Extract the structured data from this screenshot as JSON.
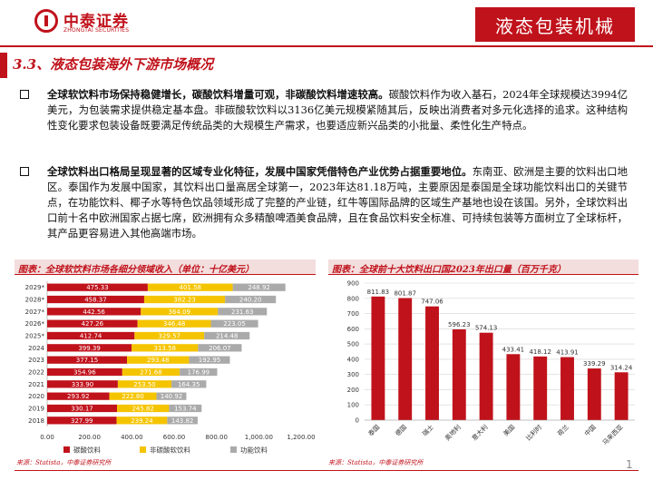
{
  "header": {
    "logo_cn": "中泰证券",
    "logo_en": "ZHONGTAI SECURITIES",
    "tag": "液态包装机械"
  },
  "section": {
    "title": "3.3、液态包装海外下游市场概况"
  },
  "paragraphs": [
    {
      "bold": "全球软饮料市场保持稳健增长，碳酸饮料增量可观，非碳酸饮料增速较高。",
      "text": "碳酸饮料作为收入基石，2024年全球规模达3994亿美元，为包装需求提供稳定基本盘。非碳酸软饮料以3136亿美元规模紧随其后，反映出消费者对多元化选择的追求。这种结构性变化要求包装设备既要满足传统品类的大规模生产需求，也要适应新兴品类的小批量、柔性化生产特点。"
    },
    {
      "bold": "全球饮料出口格局呈现显著的区域专业化特征，发展中国家凭借特色产业优势占据重要地位。",
      "text": "东南亚、欧洲是主要的饮料出口地区。泰国作为发展中国家，其饮料出口量高居全球第一，2023年达81.18万吨，主要原因是泰国是全球功能饮料出口的关键节点，在功能饮料、椰子水等特色饮品领域形成了完整的产业链，红牛等国际品牌的区域生产基地也设在该国。另外，全球饮料出口前十名中欧洲国家占据七席，欧洲拥有众多精酿啤酒美食品牌，且在食品饮料安全标准、可持续包装等方面树立了全球标杆，其产品更容易进入其他高端市场。"
    }
  ],
  "colors": {
    "accent": "#c0121b",
    "series": [
      "#c0121b",
      "#f5c400",
      "#aaaaaa"
    ]
  },
  "left_panel": {
    "title": "图表：全球软饮料市场各细分领域收入（单位：十亿美元）",
    "source": "来源：Statista，中泰证券研究所"
  },
  "right_panel": {
    "title": "图表：全球前十大饮料出口国2023年出口量（百万千克）",
    "source": "来源：Statista，中泰证券研究所"
  },
  "page_number": "1",
  "chart_data": [
    {
      "type": "bar",
      "orientation": "horizontal",
      "stacked": true,
      "title": "全球软饮料市场各细分领域收入（单位：十亿美元）",
      "categories": [
        "2018",
        "2019",
        "2020",
        "2021",
        "2022",
        "2023",
        "2024",
        "2025*",
        "2026*",
        "2027*",
        "2028*",
        "2029*"
      ],
      "series": [
        {
          "name": "碳酸饮料",
          "values": [
            327.99,
            330.17,
            293.92,
            333.9,
            354.96,
            377.15,
            399.39,
            412.74,
            427.26,
            442.56,
            458.37,
            475.33
          ]
        },
        {
          "name": "非碳酸软饮料",
          "values": [
            239.24,
            245.82,
            222.8,
            253.5,
            271.68,
            293.48,
            313.58,
            329.57,
            346.48,
            364.09,
            382.23,
            401.58
          ]
        },
        {
          "name": "功能饮料",
          "values": [
            143.82,
            153.74,
            140.92,
            164.35,
            176.99,
            192.95,
            206.07,
            214.48,
            223.05,
            231.63,
            240.2,
            248.92
          ]
        }
      ],
      "xlim": [
        0,
        1200
      ],
      "xticks": [
        "0.00",
        "200.00",
        "400.00",
        "600.00",
        "800.00",
        "1,000.00",
        "1,200.00"
      ],
      "legend": "bottom"
    },
    {
      "type": "bar",
      "title": "全球前十大饮料出口国2023年出口量（百万千克）",
      "categories": [
        "泰国",
        "德国",
        "瑞士",
        "奥地利",
        "意大利",
        "美国",
        "比利时",
        "荷兰",
        "中国",
        "马来西亚"
      ],
      "values": [
        811.83,
        801.87,
        747.06,
        596.23,
        574.13,
        433.41,
        418.12,
        413.91,
        339.29,
        314.24
      ],
      "labels": [
        "811.83",
        "801.87",
        "747.06",
        "596.23",
        "574.13",
        "433.41",
        "418.12",
        "413.91",
        "339.29",
        "314.24"
      ],
      "ylim": [
        0,
        900
      ],
      "yticks": [
        "0",
        "100",
        "200",
        "300",
        "400",
        "500",
        "600",
        "700",
        "800",
        "900"
      ],
      "grid": true
    }
  ]
}
